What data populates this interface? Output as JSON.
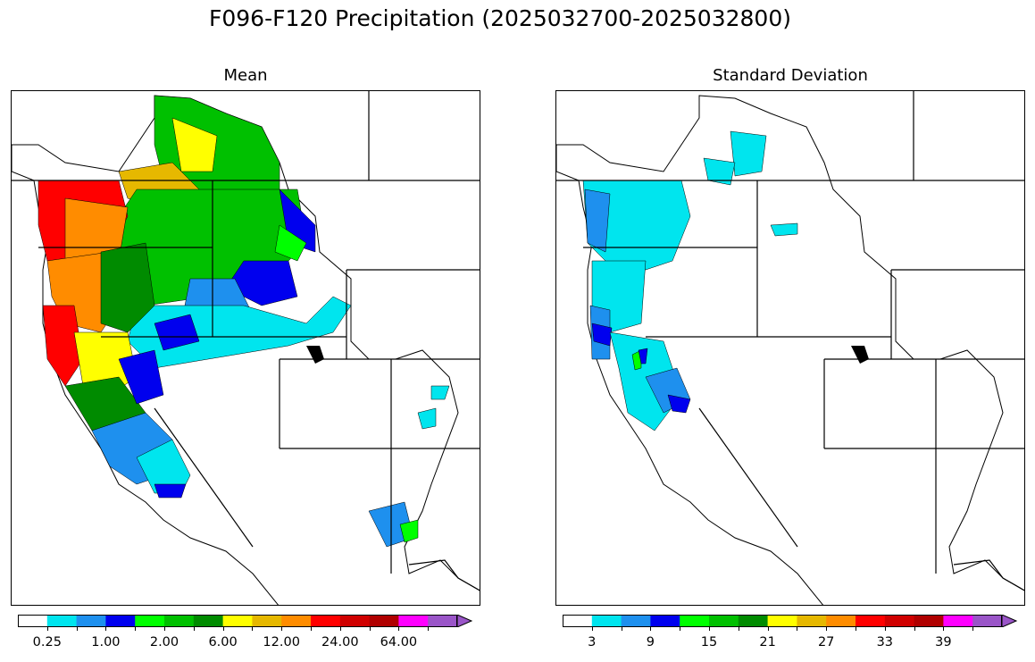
{
  "title": "F096-F120 Precipitation (2025032700-2025032800)",
  "panels": [
    {
      "id": "mean",
      "title": "Mean",
      "colorbar": {
        "colors": [
          "#ffffff",
          "#00e5ee",
          "#1e90ee",
          "#0000ee",
          "#00ff00",
          "#00c000",
          "#008b00",
          "#ffff00",
          "#e6b800",
          "#ff8c00",
          "#ff0000",
          "#d00000",
          "#b00000",
          "#ff00ff",
          "#9a55c8"
        ],
        "tick_labels": [
          "0.25",
          "1.00",
          "2.00",
          "6.00",
          "12.00",
          "24.00",
          "64.00"
        ],
        "extend": "max"
      }
    },
    {
      "id": "stddev",
      "title": "Standard Deviation",
      "colorbar": {
        "colors": [
          "#ffffff",
          "#00e5ee",
          "#1e90ee",
          "#0000ee",
          "#00ff00",
          "#00c000",
          "#008b00",
          "#ffff00",
          "#e6b800",
          "#ff8c00",
          "#ff0000",
          "#d00000",
          "#b00000",
          "#ff00ff",
          "#9a55c8"
        ],
        "tick_labels": [
          "3",
          "9",
          "15",
          "21",
          "27",
          "33",
          "39"
        ],
        "extend": "max"
      }
    }
  ]
}
